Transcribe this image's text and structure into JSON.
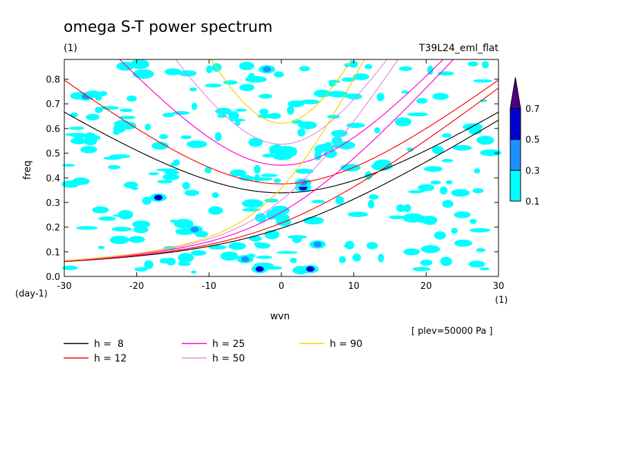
{
  "chart_data": {
    "type": "heatmap",
    "title": "omega S-T power spectrum",
    "title_units": "(1)",
    "subtitle_right": "T39L24_eml_flat",
    "xlabel": "wvn",
    "ylabel": "freq",
    "x_units": "(1)",
    "y_units": "(day-1)",
    "xlim": [
      -30,
      30
    ],
    "ylim": [
      0,
      0.88
    ],
    "xticks": [
      -30,
      -20,
      -10,
      0,
      10,
      20,
      30
    ],
    "yticks": [
      0.0,
      0.1,
      0.2,
      0.3,
      0.4,
      0.5,
      0.6,
      0.7,
      0.8
    ],
    "annotation": "[ plev=50000 Pa ]",
    "colorbar": {
      "levels": [
        0.1,
        0.3,
        0.5,
        0.7
      ],
      "colors": [
        "#00ffff",
        "#1e90ff",
        "#0000cd",
        "#4b0082"
      ]
    },
    "contour_patches": [
      {
        "x": -27,
        "y": 0.73,
        "level": 1
      },
      {
        "x": -26,
        "y": 0.74,
        "level": 0
      },
      {
        "x": -17,
        "y": 0.32,
        "level": 2
      },
      {
        "x": -12,
        "y": 0.19,
        "level": 1
      },
      {
        "x": -5,
        "y": 0.07,
        "level": 1
      },
      {
        "x": -3,
        "y": 0.03,
        "level": 2
      },
      {
        "x": -2,
        "y": 0.84,
        "level": 1
      },
      {
        "x": 3,
        "y": 0.36,
        "level": 2
      },
      {
        "x": 3,
        "y": 0.38,
        "level": 1
      },
      {
        "x": 4,
        "y": 0.03,
        "level": 2
      },
      {
        "x": 5,
        "y": 0.13,
        "level": 1
      },
      {
        "x": 11,
        "y": 0.81,
        "level": 0
      },
      {
        "x": -28,
        "y": 0.55,
        "level": 0
      },
      {
        "x": -22,
        "y": 0.62,
        "level": 0
      },
      {
        "x": -15,
        "y": 0.83,
        "level": 0
      },
      {
        "x": -8,
        "y": 0.67,
        "level": 0
      },
      {
        "x": 2,
        "y": 0.7,
        "level": 0
      },
      {
        "x": 8,
        "y": 0.58,
        "level": 0
      },
      {
        "x": 14,
        "y": 0.46,
        "level": 0
      },
      {
        "x": 20,
        "y": 0.36,
        "level": 0
      },
      {
        "x": 25,
        "y": 0.25,
        "level": 0
      },
      {
        "x": -20,
        "y": 0.15,
        "level": 0
      },
      {
        "x": -25,
        "y": 0.27,
        "level": 0
      },
      {
        "x": 18,
        "y": 0.1,
        "level": 0
      },
      {
        "x": 27,
        "y": 0.05,
        "level": 0
      },
      {
        "x": 0,
        "y": 0.24,
        "level": 0
      },
      {
        "x": -6,
        "y": 0.42,
        "level": 0
      },
      {
        "x": 22,
        "y": 0.73,
        "level": 0
      }
    ],
    "series": [
      {
        "name": "h =  8",
        "color": "#000000",
        "equivalent_depth": 8
      },
      {
        "name": "h = 12",
        "color": "#ff0000",
        "equivalent_depth": 12
      },
      {
        "name": "h = 25",
        "color": "#ff00cc",
        "equivalent_depth": 25
      },
      {
        "name": "h = 50",
        "color": "#e08ce0",
        "equivalent_depth": 50
      },
      {
        "name": "h = 90",
        "color": "#ffcc00",
        "equivalent_depth": 90
      }
    ]
  }
}
